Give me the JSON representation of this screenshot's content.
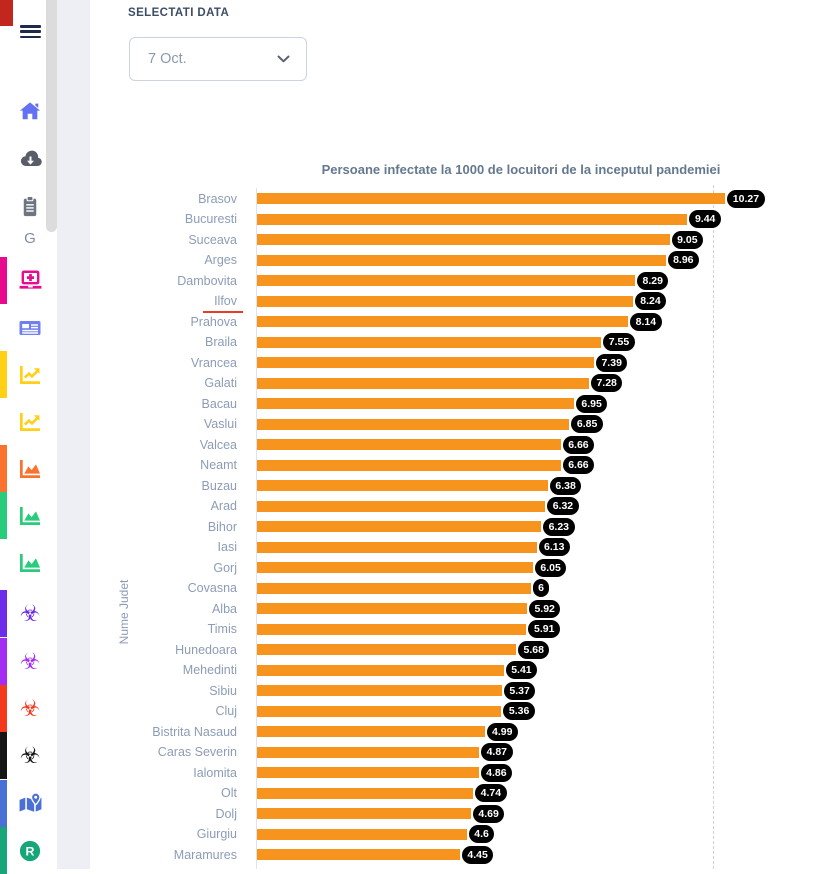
{
  "annotations": {
    "corner_marker_color": "#c1271c"
  },
  "header": {
    "select_label": "SELECTATI DATA",
    "date_select": {
      "value": "7 Oct."
    }
  },
  "sidebar": {
    "menu_color": "#1d2b48",
    "items": [
      {
        "name": "home",
        "icon": "home-icon",
        "color": "#6571f3",
        "active": false
      },
      {
        "name": "downloads",
        "icon": "cloud-download-icon",
        "color": "#575d69",
        "active": false
      },
      {
        "name": "reports",
        "icon": "clipboard-icon",
        "color": "#6d7580",
        "active": false
      },
      {
        "name": "g",
        "icon": "letter-g-icon",
        "color": "#7e8ca3",
        "active": false
      },
      {
        "name": "cases",
        "icon": "laptop-medical-icon",
        "color": "#e60b8f",
        "active": true
      },
      {
        "name": "news",
        "icon": "newspaper-icon",
        "color": "#7080f0",
        "active": false
      },
      {
        "name": "trend-1",
        "icon": "chart-line-icon",
        "color": "#ffd016",
        "active": true
      },
      {
        "name": "trend-2",
        "icon": "chart-line-icon",
        "color": "#ffd016",
        "active": false
      },
      {
        "name": "area-1",
        "icon": "chart-area-icon",
        "color": "#f9722e",
        "active": true
      },
      {
        "name": "area-2",
        "icon": "chart-area-icon",
        "color": "#29cc7a",
        "active": true
      },
      {
        "name": "area-3",
        "icon": "chart-area-icon",
        "color": "#29cc7a",
        "active": false
      },
      {
        "name": "biohazard-1",
        "icon": "biohazard-icon",
        "color": "#6d2bea",
        "active": true
      },
      {
        "name": "biohazard-2",
        "icon": "biohazard-icon",
        "color": "#a32cf2",
        "active": true
      },
      {
        "name": "biohazard-3",
        "icon": "biohazard-icon",
        "color": "#f43a1d",
        "active": true
      },
      {
        "name": "biohazard-4",
        "icon": "biohazard-icon",
        "color": "#151515",
        "active": true
      },
      {
        "name": "map",
        "icon": "map-marked-icon",
        "color": "#4a70d6",
        "active": true
      },
      {
        "name": "r-rate",
        "icon": "registered-icon",
        "color": "#17a678",
        "active": true
      }
    ]
  },
  "chart_data": {
    "type": "bar",
    "orientation": "horizontal",
    "title": "Persoane infectate la 1000 de locuitori de la inceputul pandemiei",
    "xlabel": "",
    "ylabel": "Nume Judet",
    "xlim": [
      0,
      10.5
    ],
    "gridline_x": 10,
    "gridline_style": "dashed",
    "legend": "off",
    "bar_color": "#f7941e",
    "value_label_bg": "#000000",
    "value_label_color": "#ffffff",
    "category_color": "#8d9cb6",
    "highlighted_category": "Ilfov",
    "highlight_color": "#e23f28",
    "categories": [
      "Brasov",
      "Bucuresti",
      "Suceava",
      "Arges",
      "Dambovita",
      "Ilfov",
      "Prahova",
      "Braila",
      "Vrancea",
      "Galati",
      "Bacau",
      "Vaslui",
      "Valcea",
      "Neamt",
      "Buzau",
      "Arad",
      "Bihor",
      "Iasi",
      "Gorj",
      "Covasna",
      "Alba",
      "Timis",
      "Hunedoara",
      "Mehedinti",
      "Sibiu",
      "Cluj",
      "Bistrita Nasaud",
      "Caras Severin",
      "Ialomita",
      "Olt",
      "Dolj",
      "Giurgiu",
      "Maramures"
    ],
    "values": [
      10.27,
      9.44,
      9.05,
      8.96,
      8.29,
      8.24,
      8.14,
      7.55,
      7.39,
      7.28,
      6.95,
      6.85,
      6.66,
      6.66,
      6.38,
      6.32,
      6.23,
      6.13,
      6.05,
      6,
      5.92,
      5.91,
      5.68,
      5.41,
      5.37,
      5.36,
      4.99,
      4.87,
      4.86,
      4.74,
      4.69,
      4.6,
      4.45
    ],
    "value_labels": [
      "10.27",
      "9.44",
      "9.05",
      "8.96",
      "8.29",
      "8.24",
      "8.14",
      "7.55",
      "7.39",
      "7.28",
      "6.95",
      "6.85",
      "6.66",
      "6.66",
      "6.38",
      "6.32",
      "6.23",
      "6.13",
      "6.05",
      "6",
      "5.92",
      "5.91",
      "5.68",
      "5.41",
      "5.37",
      "5.36",
      "4.99",
      "4.87",
      "4.86",
      "4.74",
      "4.69",
      "4.6",
      "4.45"
    ]
  }
}
